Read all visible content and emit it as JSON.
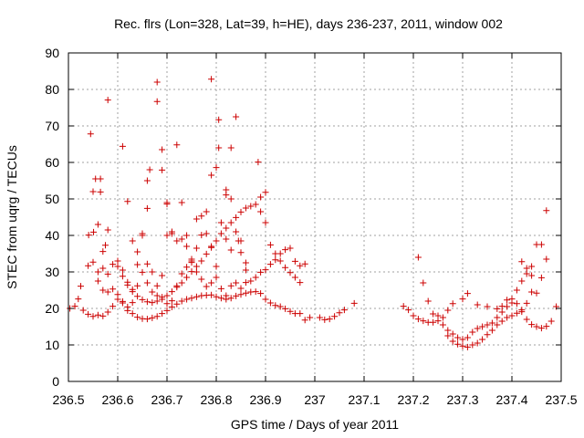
{
  "chart_data": {
    "type": "scatter",
    "title": "Rec. flrs (Lon=328, Lat=39, h=HE), days 236-237, 2011, window 002",
    "xlabel": "GPS time / Days of year 2011",
    "ylabel": "STEC from uqrg / TECUs",
    "xlim": [
      236.5,
      237.5
    ],
    "ylim": [
      0,
      90
    ],
    "x_ticks": [
      236.5,
      236.6,
      236.7,
      236.8,
      236.9,
      237.0,
      237.1,
      237.2,
      237.3,
      237.4,
      237.5
    ],
    "x_tick_labels": [
      "236.5",
      "236.6",
      "236.7",
      "236.8",
      "236.9",
      "237",
      "237.1",
      "237.2",
      "237.3",
      "237.4",
      "237.5"
    ],
    "y_ticks": [
      0,
      10,
      20,
      30,
      40,
      50,
      60,
      70,
      80,
      90
    ],
    "y_tick_labels": [
      "0",
      "10",
      "20",
      "30",
      "40",
      "50",
      "60",
      "70",
      "80",
      "90"
    ],
    "grid": true,
    "marker": "plus",
    "color": "#cc0000",
    "series": [
      {
        "points": [
          [
            236.503,
            20.0
          ],
          [
            236.513,
            20.6
          ],
          [
            236.52,
            22.6
          ],
          [
            236.53,
            19.5
          ],
          [
            236.54,
            18.4
          ],
          [
            236.55,
            17.8
          ],
          [
            236.56,
            18.2
          ],
          [
            236.57,
            17.9
          ],
          [
            236.58,
            19.0
          ],
          [
            236.59,
            20.6
          ],
          [
            236.6,
            22.5
          ],
          [
            236.61,
            21.5
          ],
          [
            236.62,
            20.4
          ],
          [
            236.63,
            18.6
          ],
          [
            236.64,
            17.6
          ],
          [
            236.65,
            17.2
          ],
          [
            236.66,
            17.1
          ],
          [
            236.67,
            17.4
          ],
          [
            236.68,
            17.8
          ],
          [
            236.69,
            18.6
          ],
          [
            236.7,
            19.4
          ],
          [
            236.71,
            20.4
          ],
          [
            236.72,
            21.2
          ],
          [
            236.73,
            22.0
          ],
          [
            236.74,
            22.5
          ],
          [
            236.75,
            22.8
          ],
          [
            236.76,
            23.2
          ],
          [
            236.77,
            23.5
          ],
          [
            236.78,
            23.6
          ],
          [
            236.79,
            23.7
          ],
          [
            236.8,
            23.2
          ],
          [
            236.81,
            22.8
          ],
          [
            236.82,
            22.5
          ],
          [
            236.83,
            22.8
          ],
          [
            236.84,
            23.4
          ],
          [
            236.85,
            23.8
          ],
          [
            236.86,
            24.2
          ],
          [
            236.87,
            24.5
          ],
          [
            236.88,
            24.6
          ],
          [
            236.89,
            24.1
          ],
          [
            236.9,
            22.5
          ],
          [
            236.91,
            21.5
          ],
          [
            236.92,
            20.8
          ],
          [
            236.93,
            20.5
          ],
          [
            236.94,
            19.9
          ],
          [
            236.95,
            19.2
          ],
          [
            236.96,
            18.6
          ],
          [
            236.97,
            18.6
          ],
          [
            236.98,
            16.8
          ],
          [
            236.99,
            17.5
          ],
          [
            237.01,
            17.5
          ],
          [
            237.02,
            16.9
          ],
          [
            237.03,
            17.1
          ],
          [
            237.04,
            17.8
          ],
          [
            237.05,
            18.8
          ],
          [
            237.06,
            19.6
          ],
          [
            237.08,
            21.4
          ],
          [
            236.525,
            26.1
          ],
          [
            236.54,
            31.7
          ],
          [
            236.55,
            32.7
          ],
          [
            236.56,
            27.5
          ],
          [
            236.57,
            25.0
          ],
          [
            236.58,
            29.4
          ],
          [
            236.59,
            32.1
          ],
          [
            236.6,
            31.5
          ],
          [
            236.61,
            28.8
          ],
          [
            236.62,
            26.4
          ],
          [
            236.63,
            24.6
          ],
          [
            236.64,
            23.3
          ],
          [
            236.65,
            22.4
          ],
          [
            236.66,
            21.8
          ],
          [
            236.67,
            21.6
          ],
          [
            236.68,
            22.0
          ],
          [
            236.69,
            22.5
          ],
          [
            236.7,
            23.5
          ],
          [
            236.71,
            24.6
          ],
          [
            236.72,
            25.8
          ],
          [
            236.73,
            27.0
          ],
          [
            236.74,
            28.5
          ],
          [
            236.75,
            30.1
          ],
          [
            236.76,
            31.5
          ],
          [
            236.77,
            33.0
          ],
          [
            236.78,
            34.9
          ],
          [
            236.79,
            36.7
          ],
          [
            236.8,
            38.5
          ],
          [
            236.81,
            40.5
          ],
          [
            236.82,
            42.0
          ],
          [
            236.83,
            43.5
          ],
          [
            236.84,
            44.9
          ],
          [
            236.85,
            46.4
          ],
          [
            236.86,
            47.5
          ],
          [
            236.87,
            48.0
          ],
          [
            236.88,
            48.5
          ],
          [
            236.89,
            46.5
          ],
          [
            236.9,
            43.5
          ],
          [
            236.91,
            37.4
          ],
          [
            236.92,
            35.0
          ],
          [
            236.93,
            33.0
          ],
          [
            236.94,
            31.2
          ],
          [
            236.95,
            29.8
          ],
          [
            236.96,
            28.5
          ],
          [
            236.97,
            27.1
          ],
          [
            236.541,
            40.1
          ],
          [
            236.551,
            40.9
          ],
          [
            236.56,
            43.0
          ],
          [
            236.57,
            35.6
          ],
          [
            236.575,
            37.3
          ],
          [
            236.58,
            24.5
          ],
          [
            236.59,
            25.3
          ],
          [
            236.6,
            23.8
          ],
          [
            236.61,
            21.9
          ],
          [
            236.62,
            19.4
          ],
          [
            236.63,
            21.6
          ],
          [
            236.64,
            26.2
          ],
          [
            236.65,
            29.9
          ],
          [
            236.66,
            32.2
          ],
          [
            236.67,
            30.0
          ],
          [
            236.68,
            26.2
          ],
          [
            236.69,
            23.1
          ],
          [
            236.7,
            21.3
          ],
          [
            236.71,
            22.1
          ],
          [
            236.72,
            26.2
          ],
          [
            236.73,
            29.5
          ],
          [
            236.74,
            31.3
          ],
          [
            236.75,
            32.6
          ],
          [
            236.76,
            36.5
          ],
          [
            236.77,
            40.1
          ],
          [
            236.78,
            40.5
          ],
          [
            236.79,
            37.0
          ],
          [
            236.8,
            31.5
          ],
          [
            236.81,
            25.4
          ],
          [
            236.82,
            23.5
          ],
          [
            236.83,
            26.2
          ],
          [
            236.84,
            27.0
          ],
          [
            236.85,
            25.5
          ],
          [
            236.86,
            27.1
          ],
          [
            236.87,
            27.5
          ],
          [
            236.88,
            28.5
          ],
          [
            236.89,
            29.9
          ],
          [
            236.9,
            30.6
          ],
          [
            236.91,
            32.1
          ],
          [
            236.92,
            33.3
          ],
          [
            236.93,
            35.0
          ],
          [
            236.94,
            36.1
          ],
          [
            236.95,
            36.5
          ],
          [
            236.96,
            32.9
          ],
          [
            236.97,
            31.7
          ],
          [
            236.98,
            32.2
          ],
          [
            236.545,
            67.8
          ],
          [
            236.55,
            52.0
          ],
          [
            236.555,
            55.5
          ],
          [
            236.565,
            55.5
          ],
          [
            236.565,
            51.9
          ],
          [
            236.58,
            77.1
          ],
          [
            236.61,
            64.4
          ],
          [
            236.62,
            49.3
          ],
          [
            236.63,
            38.5
          ],
          [
            236.64,
            32.0
          ],
          [
            236.65,
            40.5
          ],
          [
            236.66,
            47.4
          ],
          [
            236.66,
            55.0
          ],
          [
            236.665,
            58.0
          ],
          [
            236.68,
            82.0
          ],
          [
            236.68,
            76.7
          ],
          [
            236.69,
            63.5
          ],
          [
            236.69,
            57.9
          ],
          [
            236.7,
            48.6
          ],
          [
            236.7,
            49.0
          ],
          [
            236.71,
            40.5
          ],
          [
            236.72,
            64.8
          ],
          [
            236.73,
            49.0
          ],
          [
            236.74,
            40.0
          ],
          [
            236.75,
            33.5
          ],
          [
            236.76,
            44.5
          ],
          [
            236.77,
            45.3
          ],
          [
            236.78,
            46.5
          ],
          [
            236.79,
            82.8
          ],
          [
            236.79,
            56.5
          ],
          [
            236.8,
            58.6
          ],
          [
            236.805,
            64.0
          ],
          [
            236.805,
            71.7
          ],
          [
            236.82,
            52.5
          ],
          [
            236.82,
            51.1
          ],
          [
            236.83,
            64.0
          ],
          [
            236.83,
            50.0
          ],
          [
            236.84,
            72.5
          ],
          [
            236.845,
            38.5
          ],
          [
            236.85,
            35.3
          ],
          [
            236.86,
            30.5
          ],
          [
            236.885,
            60.1
          ],
          [
            236.89,
            50.5
          ],
          [
            236.9,
            51.8
          ],
          [
            236.56,
            30.0
          ],
          [
            236.57,
            31.0
          ],
          [
            236.58,
            41.5
          ],
          [
            236.6,
            33.0
          ],
          [
            236.61,
            30.5
          ],
          [
            236.62,
            27.2
          ],
          [
            236.63,
            25.2
          ],
          [
            236.64,
            35.5
          ],
          [
            236.65,
            40.0
          ],
          [
            236.66,
            27.0
          ],
          [
            236.67,
            24.5
          ],
          [
            236.68,
            23.5
          ],
          [
            236.69,
            29.0
          ],
          [
            236.7,
            40.0
          ],
          [
            236.71,
            41.0
          ],
          [
            236.72,
            38.5
          ],
          [
            236.73,
            39.0
          ],
          [
            236.74,
            37.0
          ],
          [
            236.75,
            33.0
          ],
          [
            236.76,
            30.0
          ],
          [
            236.77,
            28.0
          ],
          [
            236.78,
            26.0
          ],
          [
            236.79,
            27.0
          ],
          [
            236.8,
            28.5
          ],
          [
            236.81,
            43.5
          ],
          [
            236.82,
            39.0
          ],
          [
            236.83,
            36.0
          ],
          [
            236.84,
            41.0
          ],
          [
            236.85,
            38.5
          ],
          [
            236.86,
            32.5
          ],
          [
            237.18,
            20.6
          ],
          [
            237.19,
            19.6
          ],
          [
            237.2,
            18.0
          ],
          [
            237.21,
            17.1
          ],
          [
            237.22,
            16.6
          ],
          [
            237.23,
            16.2
          ],
          [
            237.24,
            16.2
          ],
          [
            237.25,
            16.6
          ],
          [
            237.26,
            17.5
          ],
          [
            237.27,
            19.5
          ],
          [
            237.28,
            21.3
          ],
          [
            237.3,
            22.6
          ],
          [
            237.31,
            24.1
          ],
          [
            237.33,
            21.0
          ],
          [
            237.35,
            20.5
          ],
          [
            237.37,
            19.9
          ],
          [
            237.38,
            20.6
          ],
          [
            237.39,
            22.3
          ],
          [
            237.4,
            22.6
          ],
          [
            237.41,
            21.3
          ],
          [
            237.42,
            19.1
          ],
          [
            237.43,
            17.0
          ],
          [
            237.44,
            15.6
          ],
          [
            237.45,
            15.0
          ],
          [
            237.46,
            14.6
          ],
          [
            237.47,
            15.1
          ],
          [
            237.48,
            16.5
          ],
          [
            237.49,
            20.5
          ],
          [
            237.21,
            34.0
          ],
          [
            237.22,
            27.0
          ],
          [
            237.23,
            22.0
          ],
          [
            237.24,
            18.5
          ],
          [
            237.25,
            18.0
          ],
          [
            237.26,
            15.5
          ],
          [
            237.27,
            12.5
          ],
          [
            237.28,
            11.0
          ],
          [
            237.29,
            10.2
          ],
          [
            237.3,
            9.7
          ],
          [
            237.31,
            9.4
          ],
          [
            237.32,
            10.0
          ],
          [
            237.33,
            10.5
          ],
          [
            237.34,
            11.5
          ],
          [
            237.35,
            12.8
          ],
          [
            237.36,
            14.0
          ],
          [
            237.37,
            15.5
          ],
          [
            237.38,
            16.5
          ],
          [
            237.39,
            17.5
          ],
          [
            237.4,
            18.0
          ],
          [
            237.41,
            18.7
          ],
          [
            237.42,
            19.6
          ],
          [
            237.43,
            21.4
          ],
          [
            237.44,
            24.5
          ],
          [
            237.45,
            24.2
          ],
          [
            237.46,
            28.4
          ],
          [
            237.27,
            14.0
          ],
          [
            237.28,
            13.0
          ],
          [
            237.29,
            12.0
          ],
          [
            237.3,
            11.5
          ],
          [
            237.31,
            12.0
          ],
          [
            237.32,
            13.5
          ],
          [
            237.33,
            14.5
          ],
          [
            237.34,
            15.0
          ],
          [
            237.35,
            15.5
          ],
          [
            237.36,
            16.0
          ],
          [
            237.37,
            17.5
          ],
          [
            237.38,
            19.0
          ],
          [
            237.39,
            20.5
          ],
          [
            237.4,
            21.5
          ],
          [
            237.41,
            25.0
          ],
          [
            237.42,
            27.5
          ],
          [
            237.43,
            29.5
          ],
          [
            237.44,
            31.5
          ],
          [
            237.45,
            37.5
          ],
          [
            237.46,
            37.5
          ],
          [
            237.47,
            33.5
          ],
          [
            237.47,
            46.8
          ],
          [
            237.42,
            32.8
          ],
          [
            237.43,
            31.0
          ],
          [
            237.44,
            29.0
          ]
        ]
      }
    ]
  }
}
